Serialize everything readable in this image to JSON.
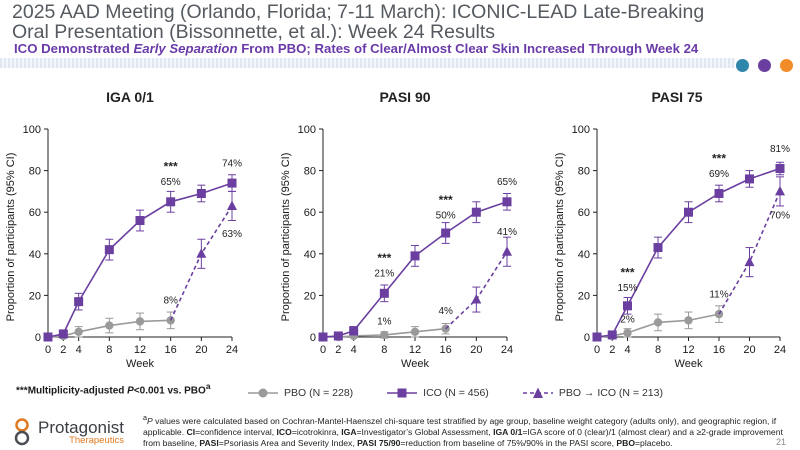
{
  "slide": {
    "title_line1": "2025 AAD Meeting (Orlando, Florida; 7-11 March): ICONIC-LEAD Late-Breaking",
    "title_line2": "Oral Presentation (Bissonnette, et al.): Week 24 Results",
    "subtitle_pre": "ICO Demonstrated ",
    "subtitle_em": "Early Separation",
    "subtitle_post": " From PBO; Rates of Clear/Almost Clear Skin Increased Through Week 24",
    "dot_colors": [
      "#2e86ab",
      "#6b3fa0",
      "#f28c28"
    ],
    "page_number": "21"
  },
  "footnote_left": {
    "stars": "***",
    "text_pre": "Multiplicity-adjusted ",
    "p_label": "P",
    "text_post": "<0.001 vs. PBO",
    "sup": "a"
  },
  "legend": {
    "pbo": "PBO (N = 228)",
    "ico": "ICO (N = 456)",
    "switch": "PBO → ICO (N = 213)"
  },
  "notes": {
    "a_sup": "a",
    "p_letter": "P",
    "line1": " values were calculated based on Cochran-Mantel-Haenszel chi-square test stratified by age group, baseline weight category (adults only), and geographic region, if",
    "applicable": "applicable. ",
    "ci_k": "CI",
    "ci_v": "=confidence interval, ",
    "ico_k": "ICO",
    "ico_v": "=icotrokinra, ",
    "iga_k": "IGA",
    "iga_v": "=Investigator’s Global Assessment, ",
    "iga01_k": "IGA 0/1",
    "iga01_v": "=IGA score of 0 (clear)/1 (almost clear) and a ≥2-grade improvement",
    "from_baseline": "from baseline, ",
    "pasi_k": "PASI",
    "pasi_v": "=Psoriasis Area and Severity Index, ",
    "pasi7590_k": "PASI 75/90",
    "pasi7590_v": "=reduction from baseline of 75%/90% in the PASI score, ",
    "pbo_k": "PBO",
    "pbo_v": "=placebo."
  },
  "logo": {
    "name": "Protagonist",
    "sub": "Therapeutics"
  },
  "chart_data": [
    {
      "type": "line",
      "title": "IGA 0/1",
      "xlabel": "Week",
      "ylabel": "Proportion of participants (95% CI)",
      "x_ticks": [
        0,
        2,
        4,
        8,
        12,
        16,
        20,
        24
      ],
      "y_ticks": [
        0,
        20,
        40,
        60,
        80,
        100
      ],
      "xlim": [
        0,
        24
      ],
      "ylim": [
        0,
        100
      ],
      "series": [
        {
          "name": "ICO",
          "x": [
            0,
            2,
            4,
            8,
            12,
            16,
            20,
            24
          ],
          "values": [
            0,
            1.5,
            17,
            42,
            56,
            65,
            69,
            74
          ],
          "ci": [
            0,
            1.5,
            4,
            5,
            5,
            5,
            4,
            4
          ],
          "color": "#6b3fa0",
          "marker": "square",
          "dashed": false
        },
        {
          "name": "PBO",
          "x": [
            0,
            2,
            4,
            8,
            12,
            16
          ],
          "values": [
            0,
            0.5,
            2.5,
            5.5,
            7.5,
            8
          ],
          "ci": [
            0,
            0.5,
            2.5,
            3.5,
            4,
            4
          ],
          "color": "#9a9a9a",
          "marker": "circle",
          "dashed": false
        },
        {
          "name": "PBO → ICO",
          "x": [
            16,
            20,
            24
          ],
          "values": [
            8,
            40,
            63
          ],
          "ci": [
            0,
            7,
            7
          ],
          "color": "#6b3fa0",
          "marker": "triangle",
          "dashed": true
        }
      ],
      "annotations": [
        {
          "text": "***",
          "x": 16,
          "y": 80,
          "kind": "stars"
        },
        {
          "text": "65%",
          "x": 16,
          "y": 73
        },
        {
          "text": "74%",
          "x": 24,
          "y": 82
        },
        {
          "text": "63%",
          "x": 24,
          "y": 48
        },
        {
          "text": "8%",
          "x": 16,
          "y": 16
        }
      ]
    },
    {
      "type": "line",
      "title": "PASI 90",
      "xlabel": "Week",
      "ylabel": "Proportion of participants (95% CI)",
      "x_ticks": [
        0,
        2,
        4,
        8,
        12,
        16,
        20,
        24
      ],
      "y_ticks": [
        0,
        20,
        40,
        60,
        80,
        100
      ],
      "xlim": [
        0,
        24
      ],
      "ylim": [
        0,
        100
      ],
      "series": [
        {
          "name": "ICO",
          "x": [
            0,
            2,
            4,
            8,
            12,
            16,
            20,
            24
          ],
          "values": [
            0,
            0.5,
            3,
            21,
            39,
            50,
            60,
            65
          ],
          "ci": [
            0,
            0.5,
            2,
            4,
            5,
            5,
            5,
            4
          ],
          "color": "#6b3fa0",
          "marker": "square",
          "dashed": false
        },
        {
          "name": "PBO",
          "x": [
            0,
            2,
            4,
            8,
            12,
            16
          ],
          "values": [
            0,
            0,
            0.5,
            1,
            2.5,
            4
          ],
          "ci": [
            0,
            0,
            0.5,
            1.5,
            2.5,
            2.5
          ],
          "color": "#9a9a9a",
          "marker": "circle",
          "dashed": false
        },
        {
          "name": "PBO → ICO",
          "x": [
            16,
            20,
            24
          ],
          "values": [
            4,
            18,
            41
          ],
          "ci": [
            0,
            6,
            7
          ],
          "color": "#6b3fa0",
          "marker": "triangle",
          "dashed": true
        }
      ],
      "annotations": [
        {
          "text": "***",
          "x": 8,
          "y": 36,
          "kind": "stars"
        },
        {
          "text": "21%",
          "x": 8,
          "y": 29
        },
        {
          "text": "***",
          "x": 16,
          "y": 64,
          "kind": "stars"
        },
        {
          "text": "50%",
          "x": 16,
          "y": 57
        },
        {
          "text": "65%",
          "x": 24,
          "y": 73
        },
        {
          "text": "41%",
          "x": 24,
          "y": 49
        },
        {
          "text": "1%",
          "x": 8,
          "y": 6
        },
        {
          "text": "4%",
          "x": 16,
          "y": 11
        }
      ]
    },
    {
      "type": "line",
      "title": "PASI 75",
      "xlabel": "Week",
      "ylabel": "Proportion of participants (95% CI)",
      "x_ticks": [
        0,
        2,
        4,
        8,
        12,
        16,
        20,
        24
      ],
      "y_ticks": [
        0,
        20,
        40,
        60,
        80,
        100
      ],
      "xlim": [
        0,
        24
      ],
      "ylim": [
        0,
        100
      ],
      "series": [
        {
          "name": "ICO",
          "x": [
            0,
            2,
            4,
            8,
            12,
            16,
            20,
            24
          ],
          "values": [
            0,
            1,
            15,
            43,
            60,
            69,
            76,
            81
          ],
          "ci": [
            0,
            1,
            4,
            5,
            5,
            4,
            4,
            3
          ],
          "color": "#6b3fa0",
          "marker": "square",
          "dashed": false
        },
        {
          "name": "PBO",
          "x": [
            0,
            2,
            4,
            8,
            12,
            16
          ],
          "values": [
            0,
            0.5,
            2,
            7,
            8,
            11
          ],
          "ci": [
            0,
            0.5,
            2,
            4,
            4,
            4
          ],
          "color": "#9a9a9a",
          "marker": "circle",
          "dashed": false
        },
        {
          "name": "PBO → ICO",
          "x": [
            16,
            20,
            24
          ],
          "values": [
            11,
            36,
            70
          ],
          "ci": [
            0,
            7,
            7
          ],
          "color": "#6b3fa0",
          "marker": "triangle",
          "dashed": true
        }
      ],
      "annotations": [
        {
          "text": "***",
          "x": 16,
          "y": 84,
          "kind": "stars"
        },
        {
          "text": "69%",
          "x": 16,
          "y": 77
        },
        {
          "text": "81%",
          "x": 24,
          "y": 89
        },
        {
          "text": "70%",
          "x": 24,
          "y": 57
        },
        {
          "text": "***",
          "x": 4,
          "y": 29,
          "kind": "stars"
        },
        {
          "text": "15%",
          "x": 4,
          "y": 22
        },
        {
          "text": "2%",
          "x": 4,
          "y": 7
        },
        {
          "text": "11%",
          "x": 16,
          "y": 19
        }
      ]
    }
  ]
}
